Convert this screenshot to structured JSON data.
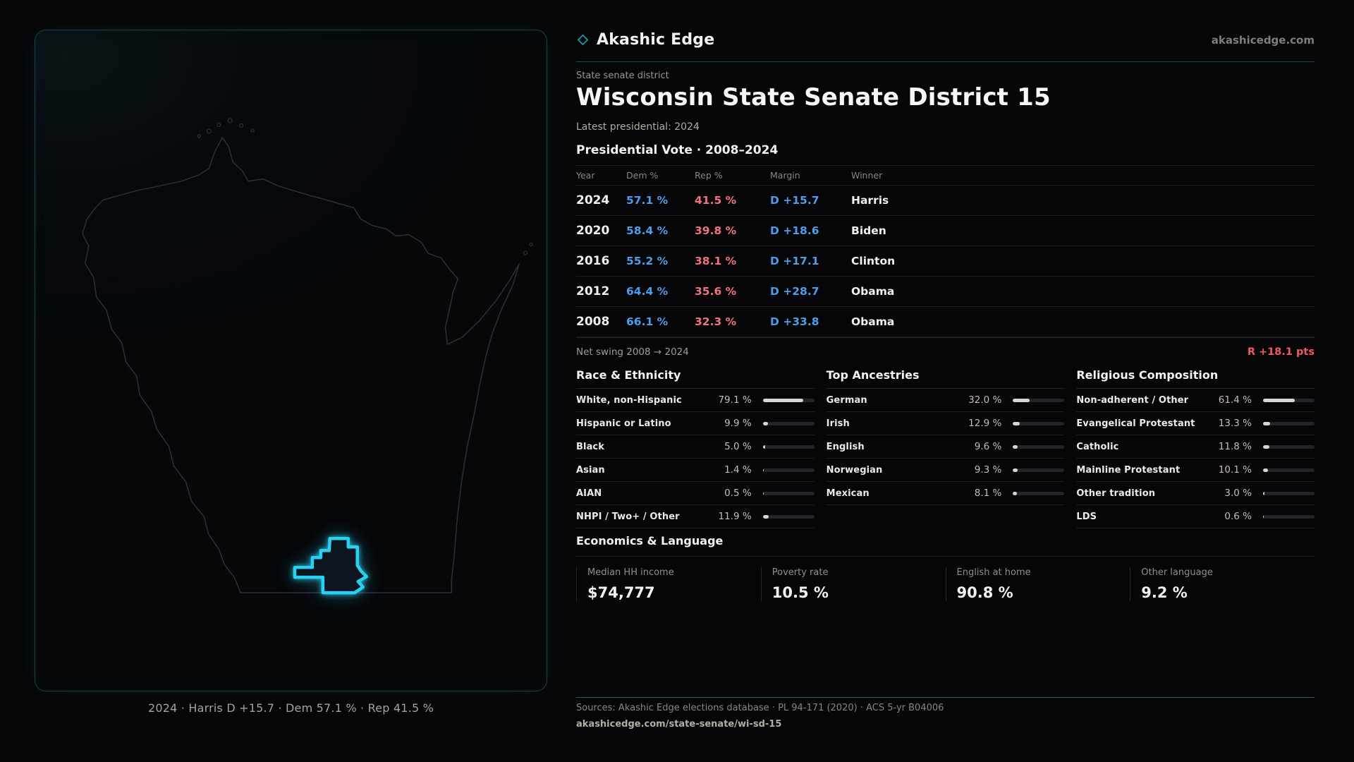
{
  "brand": {
    "name": "Akashic Edge",
    "domain": "akashicedge.com",
    "icon": "diamond-outline-icon",
    "accent_color": "#1da2b8"
  },
  "page": {
    "kicker": "State senate district",
    "title": "Wisconsin State Senate District 15",
    "latest_line": "Latest presidential: 2024"
  },
  "map": {
    "state_name": "Wisconsin",
    "caption": "2024 · Harris D +15.7 · Dem 57.1 % · Rep 41.5 %",
    "district_stroke_color": "#2ad0f0",
    "state_outline_color": "#2c3036"
  },
  "vote_table": {
    "title": "Presidential Vote · 2008–2024",
    "columns": [
      "Year",
      "Dem %",
      "Rep %",
      "Margin",
      "Winner"
    ],
    "dem_color": "#4d9ee9",
    "rep_color": "#f0727b",
    "rows": [
      {
        "year": "2024",
        "dem": "57.1 %",
        "rep": "41.5 %",
        "margin": "D +15.7",
        "winner": "Harris"
      },
      {
        "year": "2020",
        "dem": "58.4 %",
        "rep": "39.8 %",
        "margin": "D +18.6",
        "winner": "Biden"
      },
      {
        "year": "2016",
        "dem": "55.2 %",
        "rep": "38.1 %",
        "margin": "D +17.1",
        "winner": "Clinton"
      },
      {
        "year": "2012",
        "dem": "64.4 %",
        "rep": "35.6 %",
        "margin": "D +28.7",
        "winner": "Obama"
      },
      {
        "year": "2008",
        "dem": "66.1 %",
        "rep": "32.3 %",
        "margin": "D +33.8",
        "winner": "Obama"
      }
    ]
  },
  "net_swing": {
    "label": "Net swing 2008 → 2024",
    "value": "R +18.1 pts",
    "value_color": "#f25763"
  },
  "demographics": {
    "groups": [
      {
        "title": "Race & Ethnicity",
        "items": [
          {
            "label": "White, non-Hispanic",
            "value": "79.1 %",
            "pct": 79.1
          },
          {
            "label": "Hispanic or Latino",
            "value": "9.9 %",
            "pct": 9.9
          },
          {
            "label": "Black",
            "value": "5.0 %",
            "pct": 5.0
          },
          {
            "label": "Asian",
            "value": "1.4 %",
            "pct": 1.4
          },
          {
            "label": "AIAN",
            "value": "0.5 %",
            "pct": 0.5
          },
          {
            "label": "NHPI / Two+ / Other",
            "value": "11.9 %",
            "pct": 11.9
          }
        ]
      },
      {
        "title": "Top Ancestries",
        "items": [
          {
            "label": "German",
            "value": "32.0 %",
            "pct": 32.0
          },
          {
            "label": "Irish",
            "value": "12.9 %",
            "pct": 12.9
          },
          {
            "label": "English",
            "value": "9.6 %",
            "pct": 9.6
          },
          {
            "label": "Norwegian",
            "value": "9.3 %",
            "pct": 9.3
          },
          {
            "label": "Mexican",
            "value": "8.1 %",
            "pct": 8.1
          }
        ]
      },
      {
        "title": "Religious Composition",
        "items": [
          {
            "label": "Non-adherent / Other",
            "value": "61.4 %",
            "pct": 61.4
          },
          {
            "label": "Evangelical Protestant",
            "value": "13.3 %",
            "pct": 13.3
          },
          {
            "label": "Catholic",
            "value": "11.8 %",
            "pct": 11.8
          },
          {
            "label": "Mainline Protestant",
            "value": "10.1 %",
            "pct": 10.1
          },
          {
            "label": "Other tradition",
            "value": "3.0 %",
            "pct": 3.0
          },
          {
            "label": "LDS",
            "value": "0.6 %",
            "pct": 0.6
          }
        ]
      }
    ]
  },
  "economics": {
    "title": "Economics & Language",
    "stats": [
      {
        "label": "Median HH income",
        "value": "$74,777"
      },
      {
        "label": "Poverty rate",
        "value": "10.5 %"
      },
      {
        "label": "English at home",
        "value": "90.8 %"
      },
      {
        "label": "Other language",
        "value": "9.2 %"
      }
    ]
  },
  "footer": {
    "sources": "Sources: Akashic Edge elections database · PL 94-171 (2020) · ACS 5-yr B04006",
    "link": "akashicedge.com/state-senate/wi-sd-15"
  },
  "chart_data": [
    {
      "type": "table",
      "title": "Presidential Vote · 2008–2024",
      "columns": [
        "Year",
        "Dem %",
        "Rep %",
        "Margin",
        "Winner"
      ],
      "rows": [
        [
          "2024",
          57.1,
          41.5,
          "D +15.7",
          "Harris"
        ],
        [
          "2020",
          58.4,
          39.8,
          "D +18.6",
          "Biden"
        ],
        [
          "2016",
          55.2,
          38.1,
          "D +17.1",
          "Clinton"
        ],
        [
          "2012",
          64.4,
          35.6,
          "D +28.7",
          "Obama"
        ],
        [
          "2008",
          66.1,
          32.3,
          "D +33.8",
          "Obama"
        ]
      ]
    },
    {
      "type": "bar",
      "title": "Race & Ethnicity",
      "categories": [
        "White, non-Hispanic",
        "Hispanic or Latino",
        "Black",
        "Asian",
        "AIAN",
        "NHPI / Two+ / Other"
      ],
      "values": [
        79.1,
        9.9,
        5.0,
        1.4,
        0.5,
        11.9
      ],
      "unit": "%",
      "xlim": [
        0,
        100
      ]
    },
    {
      "type": "bar",
      "title": "Top Ancestries",
      "categories": [
        "German",
        "Irish",
        "English",
        "Norwegian",
        "Mexican"
      ],
      "values": [
        32.0,
        12.9,
        9.6,
        9.3,
        8.1
      ],
      "unit": "%",
      "xlim": [
        0,
        100
      ]
    },
    {
      "type": "bar",
      "title": "Religious Composition",
      "categories": [
        "Non-adherent / Other",
        "Evangelical Protestant",
        "Catholic",
        "Mainline Protestant",
        "Other tradition",
        "LDS"
      ],
      "values": [
        61.4,
        13.3,
        11.8,
        10.1,
        3.0,
        0.6
      ],
      "unit": "%",
      "xlim": [
        0,
        100
      ]
    }
  ]
}
